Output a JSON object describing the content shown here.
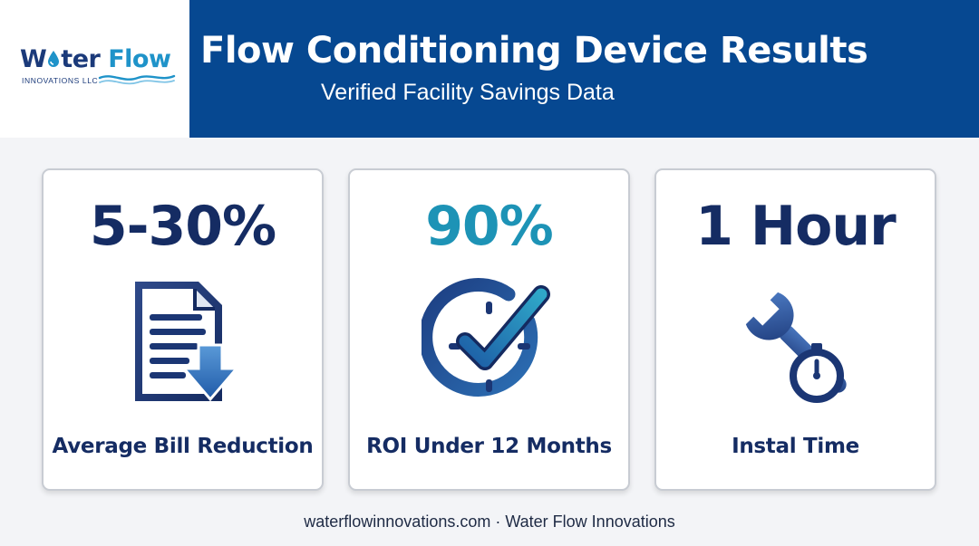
{
  "logo": {
    "name_part1": "W",
    "name_mid": "ter ",
    "name_part2": "Flow",
    "tagline": "INNOVATIONS LLC"
  },
  "header": {
    "title": "Flow Conditioning Device Results",
    "subtitle": "Verified Facility Savings Data"
  },
  "stats": [
    {
      "value": "5-30%",
      "label": "Average Bill Reduction",
      "icon": "document-download-icon"
    },
    {
      "value": "90%",
      "label": "ROI Under 12 Months",
      "icon": "clock-check-icon"
    },
    {
      "value": "1 Hour",
      "label": "Instal Time",
      "icon": "wrench-stopwatch-icon"
    }
  ],
  "footer": {
    "text": "waterflowinnovations.com · Water Flow Innovations"
  },
  "colors": {
    "header_blue": "#064891",
    "navy_text": "#152c63",
    "teal_accent": "#1d93b6",
    "background": "#f3f4f7"
  }
}
